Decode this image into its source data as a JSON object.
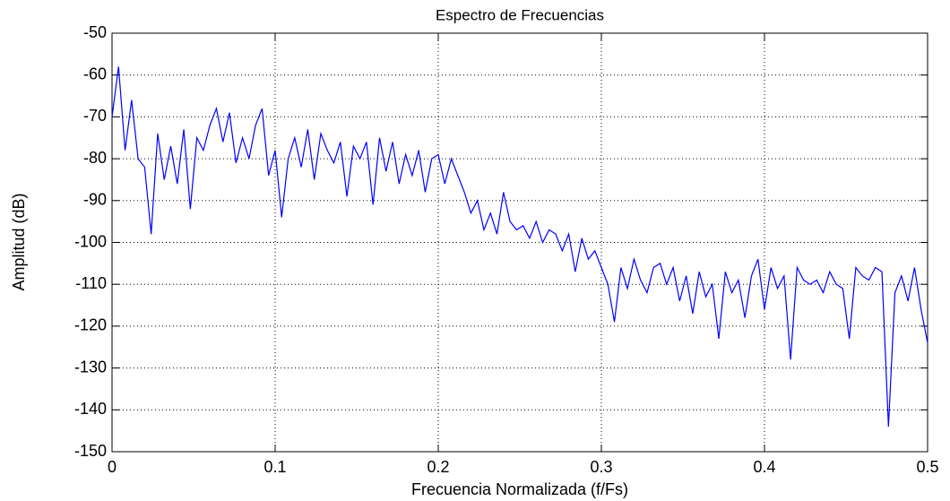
{
  "chart_data": {
    "type": "line",
    "title": "Espectro de Frecuencias",
    "xlabel": "Frecuencia Normalizada (f/Fs)",
    "ylabel": "Amplitud (dB)",
    "x": [
      0,
      0.004,
      0.008,
      0.012,
      0.016,
      0.02,
      0.024,
      0.028,
      0.032,
      0.036,
      0.04,
      0.044,
      0.048,
      0.052,
      0.056,
      0.06,
      0.064,
      0.068,
      0.072,
      0.076,
      0.08,
      0.084,
      0.088,
      0.092,
      0.096,
      0.1,
      0.104,
      0.108,
      0.112,
      0.116,
      0.12,
      0.124,
      0.128,
      0.132,
      0.136,
      0.14,
      0.144,
      0.148,
      0.152,
      0.156,
      0.16,
      0.164,
      0.168,
      0.172,
      0.176,
      0.18,
      0.184,
      0.188,
      0.192,
      0.196,
      0.2,
      0.204,
      0.208,
      0.212,
      0.216,
      0.22,
      0.224,
      0.228,
      0.232,
      0.236,
      0.24,
      0.244,
      0.248,
      0.252,
      0.256,
      0.26,
      0.264,
      0.268,
      0.272,
      0.276,
      0.28,
      0.284,
      0.288,
      0.292,
      0.296,
      0.3,
      0.304,
      0.308,
      0.312,
      0.316,
      0.32,
      0.324,
      0.328,
      0.332,
      0.336,
      0.34,
      0.344,
      0.348,
      0.352,
      0.356,
      0.36,
      0.364,
      0.368,
      0.372,
      0.376,
      0.38,
      0.384,
      0.388,
      0.392,
      0.396,
      0.4,
      0.404,
      0.408,
      0.412,
      0.416,
      0.42,
      0.424,
      0.428,
      0.432,
      0.436,
      0.44,
      0.444,
      0.448,
      0.452,
      0.456,
      0.46,
      0.464,
      0.468,
      0.472,
      0.476,
      0.48,
      0.484,
      0.488,
      0.492,
      0.496,
      0.5
    ],
    "series": [
      {
        "name": "Amplitud",
        "color": "#0000ff",
        "values": [
          -70,
          -58,
          -78,
          -66,
          -80,
          -82,
          -98,
          -74,
          -85,
          -77,
          -86,
          -73,
          -92,
          -75,
          -78,
          -72,
          -68,
          -76,
          -69,
          -81,
          -75,
          -80,
          -72,
          -68,
          -84,
          -78,
          -94,
          -80,
          -75,
          -82,
          -73,
          -85,
          -74,
          -78,
          -81,
          -76,
          -89,
          -77,
          -80,
          -76,
          -91,
          -75,
          -83,
          -76,
          -86,
          -79,
          -84,
          -78,
          -88,
          -80,
          -79,
          -86,
          -80,
          -84,
          -88,
          -93,
          -90,
          -97,
          -93,
          -98,
          -88,
          -95,
          -97,
          -96,
          -99,
          -95,
          -100,
          -97,
          -98,
          -102,
          -98,
          -107,
          -99,
          -104,
          -102,
          -106,
          -110,
          -119,
          -106,
          -111,
          -104,
          -109,
          -112,
          -106,
          -105,
          -110,
          -106,
          -114,
          -108,
          -117,
          -107,
          -113,
          -110,
          -123,
          -107,
          -112,
          -109,
          -118,
          -108,
          -104,
          -116,
          -106,
          -111,
          -108,
          -128,
          -106,
          -109,
          -110,
          -109,
          -112,
          -107,
          -110,
          -111,
          -123,
          -106,
          -108,
          -109,
          -106,
          -107,
          -144,
          -112,
          -108,
          -114,
          -106,
          -116,
          -124
        ]
      }
    ],
    "xlim": [
      0,
      0.5
    ],
    "xticks": [
      0,
      0.1,
      0.2,
      0.3,
      0.4,
      0.5
    ],
    "ylim": [
      -150,
      -50
    ],
    "yticks": [
      -150,
      -140,
      -130,
      -120,
      -110,
      -100,
      -90,
      -80,
      -70,
      -60,
      -50
    ],
    "grid": true
  }
}
